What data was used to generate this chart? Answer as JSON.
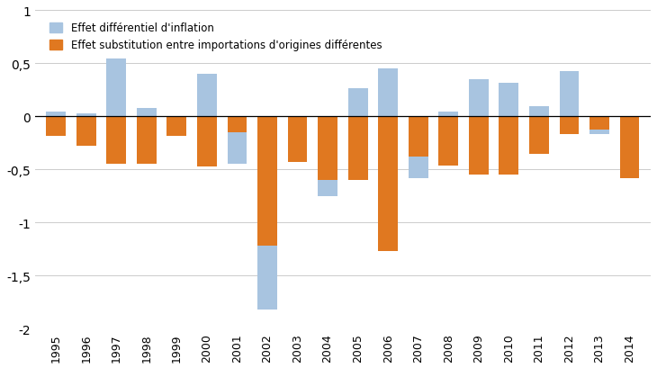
{
  "years": [
    1995,
    1996,
    1997,
    1998,
    1999,
    2000,
    2001,
    2002,
    2003,
    2004,
    2005,
    2006,
    2007,
    2008,
    2009,
    2010,
    2011,
    2012,
    2013,
    2014
  ],
  "bleu": [
    0.05,
    0.03,
    0.55,
    0.08,
    -0.02,
    0.4,
    -0.45,
    -1.82,
    -0.42,
    -0.75,
    0.27,
    0.45,
    -0.58,
    0.05,
    0.35,
    0.32,
    0.1,
    0.43,
    -0.17,
    -0.3
  ],
  "orange": [
    -0.18,
    -0.28,
    -0.45,
    -0.45,
    -0.18,
    -0.47,
    -0.15,
    -1.22,
    -0.43,
    -0.6,
    -0.6,
    -1.27,
    -0.38,
    -0.46,
    -0.55,
    -0.55,
    -0.35,
    -0.17,
    -0.12,
    -0.58
  ],
  "color_bleu": "#a8c4e0",
  "color_orange": "#e07820",
  "ylim": [
    -2.0,
    1.0
  ],
  "yticks": [
    -2.0,
    -1.5,
    -1.0,
    -0.5,
    0.0,
    0.5,
    1.0
  ],
  "ytick_labels": [
    "-2",
    "-1,5",
    "-1",
    "-0,5",
    "0",
    "0,5",
    "1"
  ],
  "legend_bleu": "Effet différentiel d'inflation",
  "legend_orange": "Effet substitution entre importations d'origines différentes",
  "bar_width": 0.65
}
